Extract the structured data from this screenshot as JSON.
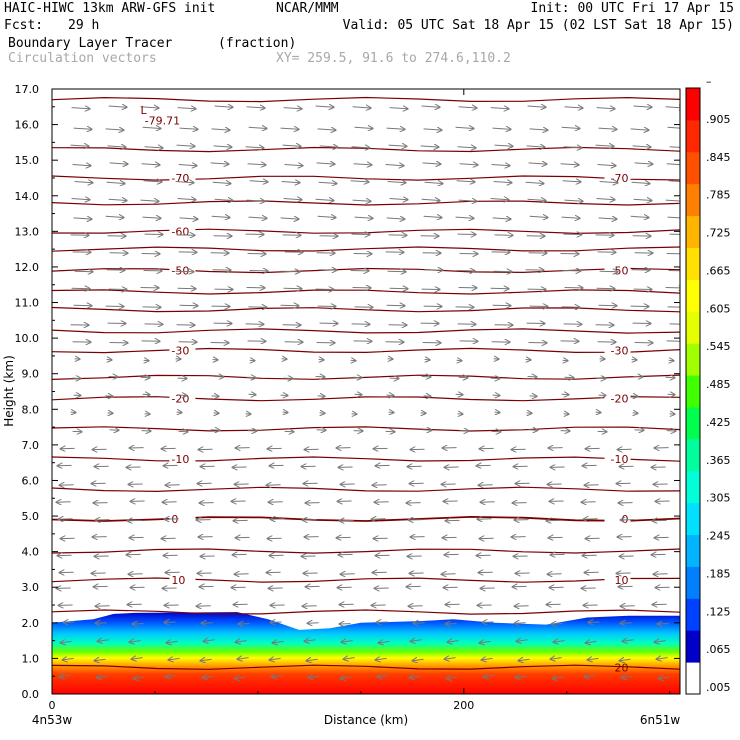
{
  "header": {
    "model": "HAIC-HIWC 13km ARW-GFS init",
    "org": "NCAR/MMM",
    "init": "Init: 00 UTC Fri 17 Apr 15",
    "fcst_label": "Fcst:",
    "fcst_value": "29 h",
    "valid": "Valid: 05 UTC Sat 18 Apr 15 (02 LST Sat 18 Apr 15)",
    "field": "Boundary Layer Tracer",
    "field_units": "(fraction)",
    "overlay": "Circulation vectors",
    "xy": "XY= 259.5, 91.6 to 274.6,110.2"
  },
  "chart_data": {
    "type": "heatmap",
    "ylabel": "Height (km)",
    "xlabel": "Distance (km)",
    "ylim": [
      0,
      17
    ],
    "xlim": [
      0,
      305
    ],
    "yticks": [
      "0.0",
      "1.0",
      "2.0",
      "3.0",
      "4.0",
      "5.0",
      "6.0",
      "7.0",
      "8.0",
      "9.0",
      "10.0",
      "11.0",
      "12.0",
      "13.0",
      "14.0",
      "15.0",
      "16.0",
      "17.0"
    ],
    "xticks": [
      {
        "value": 0,
        "label": "0"
      },
      {
        "value": 200,
        "label": "200"
      }
    ],
    "x_endpoint_labels": {
      "left": "4n53w",
      "right": "6n51w"
    },
    "colorbar": {
      "labels": [
        ".005",
        ".065",
        ".125",
        ".185",
        ".245",
        ".305",
        ".365",
        ".425",
        ".485",
        ".545",
        ".605",
        ".665",
        ".725",
        ".785",
        ".845",
        ".905",
        "–"
      ],
      "colors": [
        "#ffffff",
        "#0000c8",
        "#0040ff",
        "#0080ff",
        "#00b4ff",
        "#00e0ff",
        "#00ffd8",
        "#00ff9c",
        "#00ff4c",
        "#40ff00",
        "#a0ff00",
        "#e6ff00",
        "#ffff00",
        "#ffe000",
        "#ffb400",
        "#ff8000",
        "#ff5000",
        "#ff2800",
        "#ff0000"
      ]
    },
    "tracer_top_km": [
      [
        0,
        2.0
      ],
      [
        20,
        2.1
      ],
      [
        30,
        2.25
      ],
      [
        40,
        2.28
      ],
      [
        90,
        2.3
      ],
      [
        105,
        2.1
      ],
      [
        120,
        1.8
      ],
      [
        135,
        1.85
      ],
      [
        150,
        2.0
      ],
      [
        180,
        2.05
      ],
      [
        195,
        2.1
      ],
      [
        215,
        2.0
      ],
      [
        240,
        1.95
      ],
      [
        260,
        2.15
      ],
      [
        280,
        2.2
      ],
      [
        305,
        2.2
      ]
    ],
    "temperature_contours_c": [
      {
        "value": -80,
        "height_km": 16.7,
        "label": ""
      },
      {
        "value": -75,
        "height_km": 15.3,
        "label": ""
      },
      {
        "value": -70,
        "height_km": 14.5,
        "label": "-70"
      },
      {
        "value": -65,
        "height_km": 13.8,
        "label": ""
      },
      {
        "value": -60,
        "height_km": 13.0,
        "label": "-60"
      },
      {
        "value": -55,
        "height_km": 12.5,
        "label": ""
      },
      {
        "value": -50,
        "height_km": 11.9,
        "label": "-50"
      },
      {
        "value": -45,
        "height_km": 11.3,
        "label": ""
      },
      {
        "value": -40,
        "height_km": 10.8,
        "label": ""
      },
      {
        "value": -35,
        "height_km": 10.2,
        "label": ""
      },
      {
        "value": -30,
        "height_km": 9.65,
        "label": "-30"
      },
      {
        "value": -25,
        "height_km": 8.9,
        "label": ""
      },
      {
        "value": -20,
        "height_km": 8.3,
        "label": "-20"
      },
      {
        "value": -15,
        "height_km": 7.45,
        "label": ""
      },
      {
        "value": -10,
        "height_km": 6.6,
        "label": "-10"
      },
      {
        "value": -5,
        "height_km": 5.75,
        "label": ""
      },
      {
        "value": 0,
        "height_km": 4.92,
        "label": "0"
      },
      {
        "value": 5,
        "height_km": 4.02,
        "label": ""
      },
      {
        "value": 10,
        "height_km": 3.2,
        "label": "10"
      },
      {
        "value": 15,
        "height_km": 2.3,
        "label": ""
      },
      {
        "value": 20,
        "height_km": 0.75,
        "label": "20"
      }
    ],
    "annotations": [
      {
        "text": "L",
        "x_km": 43,
        "height_km": 16.3
      },
      {
        "text": "-79.71",
        "x_km": 45,
        "height_km": 16.0
      }
    ],
    "vector_columns_km": [
      10,
      27,
      44,
      61,
      78,
      95,
      112,
      129,
      146,
      163,
      180,
      197,
      214,
      231,
      248,
      265,
      282,
      299
    ],
    "vector_levels_km": [
      0.5,
      1.0,
      1.5,
      2.0,
      2.5,
      3.0,
      3.4,
      3.9,
      4.4,
      4.9,
      5.4,
      5.9,
      6.4,
      6.9,
      7.4,
      7.9,
      8.4,
      8.9,
      9.4,
      9.9,
      10.4,
      10.9,
      11.4,
      11.9,
      12.4,
      12.9,
      13.4,
      13.9,
      14.4,
      14.9,
      15.4,
      15.9,
      16.5
    ],
    "vector_color": "#787878",
    "contour_color": "#7a0000"
  }
}
